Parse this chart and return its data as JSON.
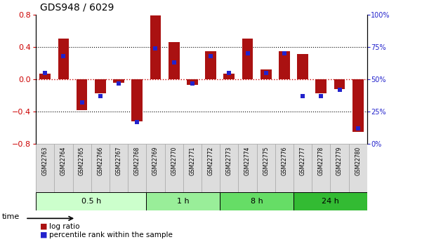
{
  "title": "GDS948 / 6029",
  "samples": [
    "GSM22763",
    "GSM22764",
    "GSM22765",
    "GSM22766",
    "GSM22767",
    "GSM22768",
    "GSM22769",
    "GSM22770",
    "GSM22771",
    "GSM22772",
    "GSM22773",
    "GSM22774",
    "GSM22775",
    "GSM22776",
    "GSM22777",
    "GSM22778",
    "GSM22779",
    "GSM22780"
  ],
  "log_ratio": [
    0.07,
    0.5,
    -0.38,
    -0.17,
    -0.04,
    -0.52,
    0.79,
    0.46,
    -0.07,
    0.35,
    0.07,
    0.5,
    0.12,
    0.35,
    0.31,
    -0.17,
    -0.12,
    -0.65
  ],
  "percentile": [
    55,
    68,
    32,
    37,
    47,
    17,
    74,
    63,
    47,
    68,
    55,
    70,
    55,
    70,
    37,
    37,
    42,
    12
  ],
  "groups": [
    {
      "label": "0.5 h",
      "start": 0,
      "end": 6,
      "color": "#ccffcc"
    },
    {
      "label": "1 h",
      "start": 6,
      "end": 10,
      "color": "#99ee99"
    },
    {
      "label": "8 h",
      "start": 10,
      "end": 14,
      "color": "#66dd66"
    },
    {
      "label": "24 h",
      "start": 14,
      "end": 18,
      "color": "#33bb33"
    }
  ],
  "ylim_left": [
    -0.8,
    0.8
  ],
  "ylim_right": [
    0,
    100
  ],
  "bar_color": "#aa1111",
  "dot_color": "#2222cc",
  "zero_line_color": "#cc0000",
  "title_fontsize": 10,
  "legend_items": [
    "log ratio",
    "percentile rank within the sample"
  ]
}
